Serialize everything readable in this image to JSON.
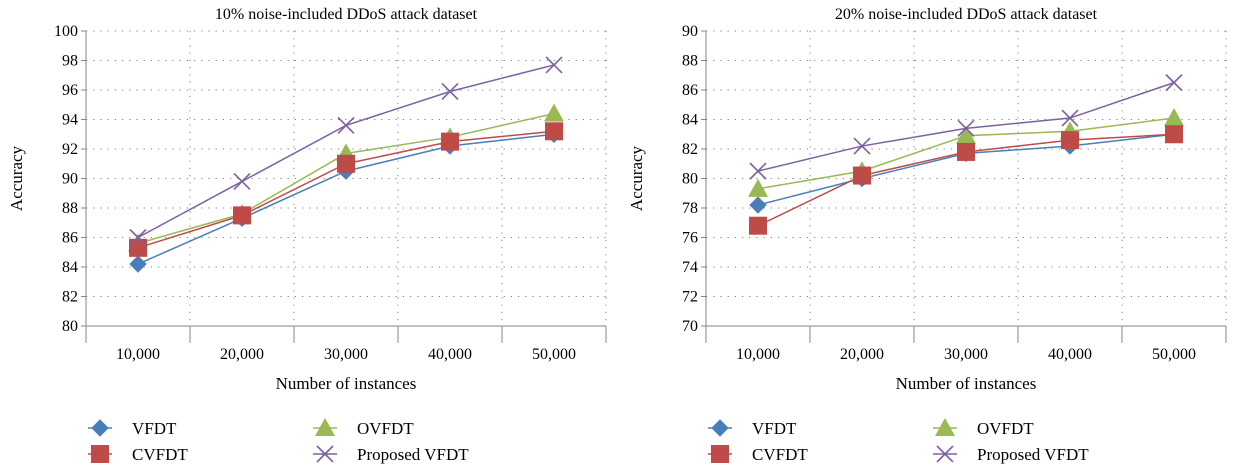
{
  "colors": {
    "VFDT": "#4a7ebb",
    "CVFDT": "#be4b48",
    "OVFDT": "#98b954",
    "Proposed VFDT": "#7d60a0",
    "grid": "#7f7f7f",
    "axis": "#868686"
  },
  "chart_data": [
    {
      "type": "line",
      "title": "10% noise-included DDoS attack dataset",
      "xlabel": "Number of instances",
      "ylabel": "Accuracy",
      "categories": [
        "10,000",
        "20,000",
        "30,000",
        "40,000",
        "50,000"
      ],
      "ylim": [
        80,
        100
      ],
      "ytick_step": 2,
      "yticks": [
        "80",
        "82",
        "84",
        "86",
        "88",
        "90",
        "92",
        "94",
        "96",
        "98",
        "100"
      ],
      "grid": "dotted horizontal and vertical",
      "legend_position": "bottom",
      "series": [
        {
          "name": "VFDT",
          "marker": "diamond",
          "values": [
            84.2,
            87.3,
            90.5,
            92.2,
            93.0
          ]
        },
        {
          "name": "OVFDT",
          "marker": "triangle",
          "values": [
            85.6,
            87.6,
            91.7,
            92.8,
            94.4
          ]
        },
        {
          "name": "CVFDT",
          "marker": "square",
          "values": [
            85.3,
            87.5,
            91.0,
            92.5,
            93.2
          ]
        },
        {
          "name": "Proposed VFDT",
          "marker": "x",
          "values": [
            86.0,
            89.8,
            93.6,
            95.9,
            97.7
          ]
        }
      ]
    },
    {
      "type": "line",
      "title": "20% noise-included DDoS attack dataset",
      "xlabel": "Number of instances",
      "ylabel": "Accuracy",
      "categories": [
        "10,000",
        "20,000",
        "30,000",
        "40,000",
        "50,000"
      ],
      "ylim": [
        70,
        90
      ],
      "ytick_step": 2,
      "yticks": [
        "70",
        "72",
        "74",
        "76",
        "78",
        "80",
        "82",
        "84",
        "86",
        "88",
        "90"
      ],
      "grid": "dotted horizontal and vertical",
      "legend_position": "bottom",
      "series": [
        {
          "name": "VFDT",
          "marker": "diamond",
          "values": [
            78.2,
            80.0,
            81.7,
            82.2,
            83.0
          ]
        },
        {
          "name": "OVFDT",
          "marker": "triangle",
          "values": [
            79.3,
            80.5,
            82.9,
            83.2,
            84.1
          ]
        },
        {
          "name": "CVFDT",
          "marker": "square",
          "values": [
            76.8,
            80.2,
            81.8,
            82.6,
            83.0
          ]
        },
        {
          "name": "Proposed VFDT",
          "marker": "x",
          "values": [
            80.5,
            82.2,
            83.4,
            84.1,
            86.5
          ]
        }
      ]
    }
  ]
}
